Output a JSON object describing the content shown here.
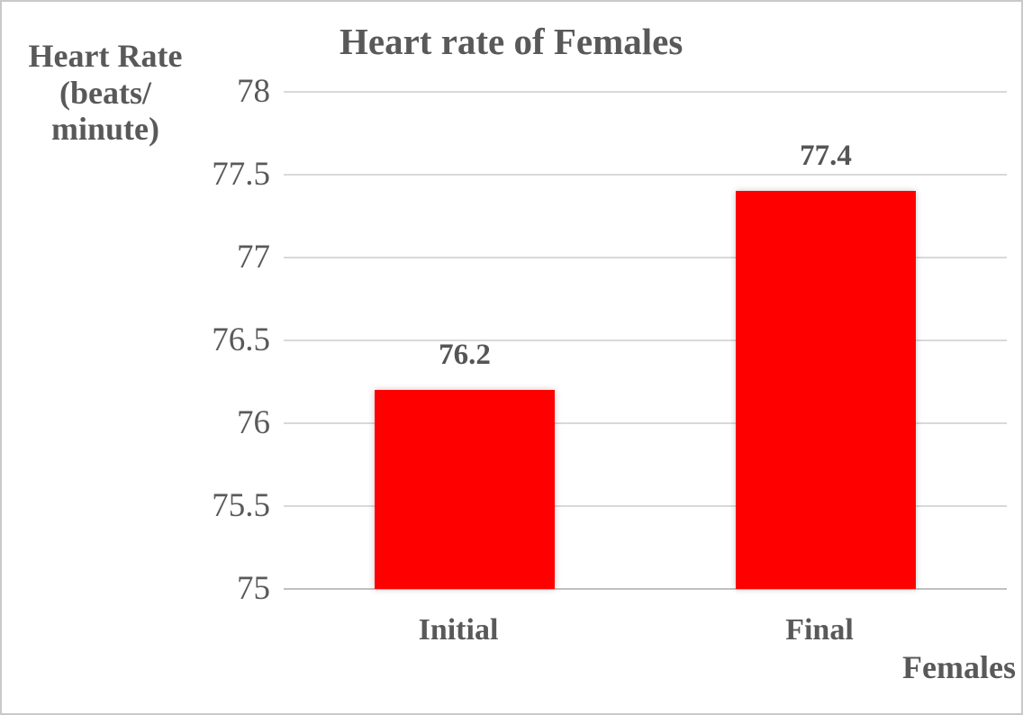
{
  "chart_data": {
    "type": "bar",
    "title": "Heart rate of Females",
    "categories": [
      "Initial",
      "Final"
    ],
    "values": [
      76.2,
      77.4
    ],
    "data_labels": [
      "76.2",
      "77.4"
    ],
    "xlabel": "Females",
    "ylabel_lines": [
      "Heart Rate",
      "(beats/",
      "minute)"
    ],
    "ylim": [
      75,
      78
    ],
    "ytick_step": 0.5,
    "ytick_labels": [
      "78",
      "77.5",
      "77",
      "76.5",
      "76",
      "75.5",
      "75"
    ],
    "grid": true,
    "legend": "none",
    "bar_color": "#ff0000",
    "text_color": "#595959",
    "gridline_color": "#d9d9d9",
    "background_color": "#ffffff"
  }
}
